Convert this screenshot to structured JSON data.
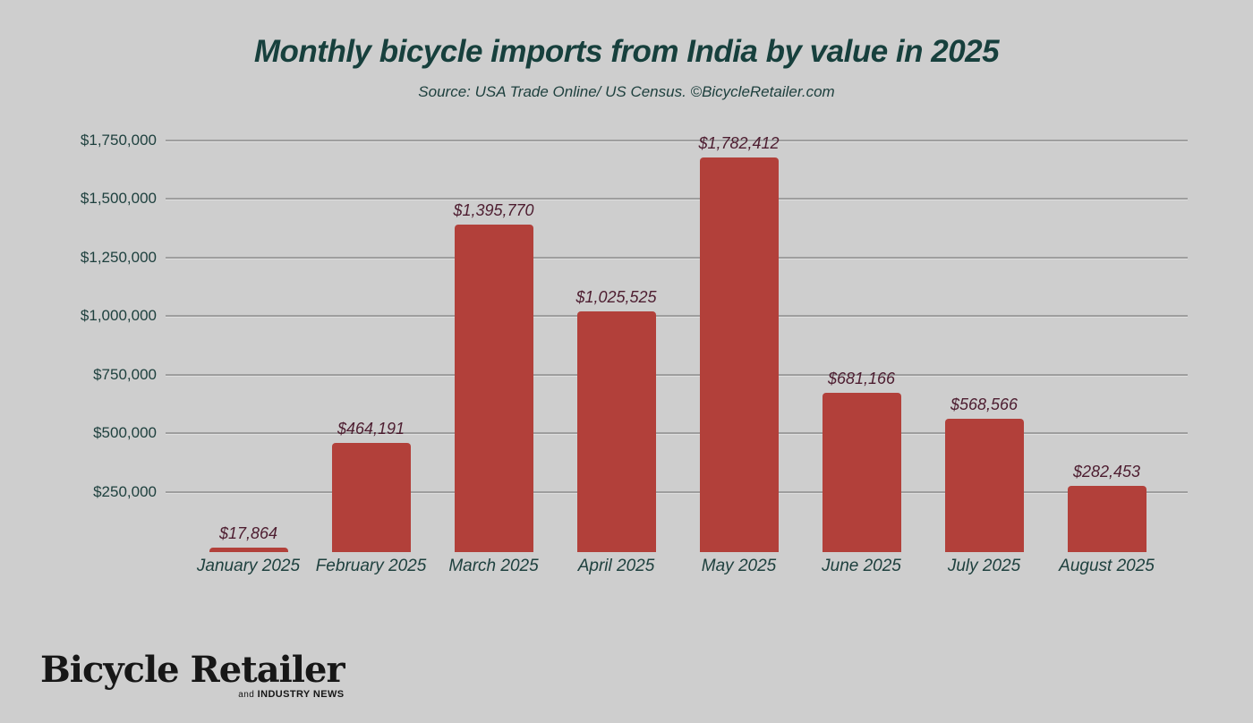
{
  "page": {
    "title": "Monthly bicycle imports from India by value in 2025",
    "subtitle": "Source: USA Trade Online/ US Census. ©BicycleRetailer.com"
  },
  "logo": {
    "name": "Bicycle Retailer",
    "tagline_prefix": "and",
    "tagline": "INDUSTRY NEWS"
  },
  "colors": {
    "background": "#cecece",
    "bar": "#b2403a",
    "title_text": "#17403d",
    "axis_text": "#1e403e",
    "value_label_text": "#4d1d30",
    "gridline": "#9e9e9e",
    "logo_text": "#171717"
  },
  "chart_data": {
    "type": "bar",
    "title": "Monthly bicycle imports from India by value in 2025",
    "subtitle": "Source: USA Trade Online/ US Census. ©BicycleRetailer.com",
    "categories": [
      "January 2025",
      "February 2025",
      "March 2025",
      "April 2025",
      "May 2025",
      "June 2025",
      "July 2025",
      "August 2025"
    ],
    "values": [
      17864,
      464191,
      1395770,
      1025525,
      1782412,
      681166,
      568566,
      282453
    ],
    "value_labels": [
      "$17,864",
      "$464,191",
      "$1,395,770",
      "$1,025,525",
      "$1,782,412",
      "$681,166",
      "$568,566",
      "$282,453"
    ],
    "y_ticks": [
      {
        "value": 250000,
        "label": "$250,000"
      },
      {
        "value": 500000,
        "label": "$500,000"
      },
      {
        "value": 750000,
        "label": "$750,000"
      },
      {
        "value": 1000000,
        "label": "$1,000,000"
      },
      {
        "value": 1250000,
        "label": "$1,250,000"
      },
      {
        "value": 1500000,
        "label": "$1,500,000"
      },
      {
        "value": 1750000,
        "label": "$1,750,000"
      }
    ],
    "ylim": [
      0,
      1782412
    ],
    "xlabel": "",
    "ylabel": "",
    "grid": "horizontal",
    "legend": "none"
  }
}
